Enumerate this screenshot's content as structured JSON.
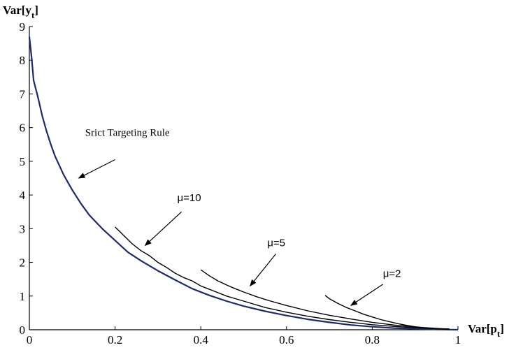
{
  "chart_data": {
    "type": "line",
    "title": "",
    "xlabel": {
      "main": "Var[p",
      "sub": "t",
      "close": "]"
    },
    "ylabel": {
      "main": "Var[y",
      "sub": "t",
      "close": "]"
    },
    "xlim": [
      0,
      1
    ],
    "ylim": [
      0,
      9
    ],
    "grid": false,
    "xticks": [
      "0",
      "0.2",
      "0.4",
      "0.6",
      "0.8",
      "1"
    ],
    "yticks": [
      "0",
      "1",
      "2",
      "3",
      "4",
      "5",
      "6",
      "7",
      "8",
      "9"
    ],
    "series": [
      {
        "name": "Srict Targeting Rule",
        "color": "#1f2a6e",
        "x": [
          0.0,
          0.005,
          0.01,
          0.02,
          0.03,
          0.04,
          0.05,
          0.06,
          0.08,
          0.1,
          0.12,
          0.14,
          0.17,
          0.2,
          0.23,
          0.26,
          0.3,
          0.34,
          0.38,
          0.42,
          0.46,
          0.5,
          0.55,
          0.6,
          0.65,
          0.7,
          0.75,
          0.8,
          0.85,
          0.9,
          0.95,
          1.0
        ],
        "y": [
          8.7,
          8.1,
          7.4,
          6.9,
          6.35,
          5.9,
          5.5,
          5.15,
          4.6,
          4.15,
          3.75,
          3.4,
          3.0,
          2.65,
          2.3,
          2.05,
          1.75,
          1.48,
          1.22,
          1.02,
          0.85,
          0.7,
          0.55,
          0.42,
          0.31,
          0.22,
          0.14,
          0.09,
          0.05,
          0.03,
          0.01,
          0.0
        ]
      },
      {
        "name": "μ=10",
        "color": "#000000",
        "x": [
          0.2,
          0.22,
          0.24,
          0.26,
          0.28,
          0.3,
          0.32,
          0.34,
          0.36,
          0.38,
          0.4,
          0.43,
          0.46,
          0.5,
          0.55,
          0.6,
          0.65,
          0.7,
          0.75,
          0.8,
          0.85,
          0.9,
          0.95,
          0.98
        ],
        "y": [
          3.05,
          2.8,
          2.55,
          2.35,
          2.2,
          2.0,
          1.85,
          1.68,
          1.55,
          1.45,
          1.3,
          1.15,
          1.0,
          0.85,
          0.66,
          0.52,
          0.4,
          0.3,
          0.22,
          0.15,
          0.1,
          0.06,
          0.03,
          0.02
        ]
      },
      {
        "name": "μ=5",
        "color": "#000000",
        "x": [
          0.4,
          0.42,
          0.44,
          0.46,
          0.48,
          0.5,
          0.53,
          0.56,
          0.6,
          0.65,
          0.7,
          0.75,
          0.8,
          0.85,
          0.9,
          0.95,
          0.98
        ],
        "y": [
          1.78,
          1.6,
          1.45,
          1.33,
          1.22,
          1.12,
          0.98,
          0.86,
          0.72,
          0.56,
          0.43,
          0.32,
          0.22,
          0.14,
          0.08,
          0.04,
          0.02
        ]
      },
      {
        "name": "μ=2",
        "color": "#000000",
        "x": [
          0.69,
          0.7,
          0.72,
          0.74,
          0.76,
          0.78,
          0.8,
          0.82,
          0.84,
          0.86,
          0.88,
          0.9,
          0.92,
          0.94,
          0.96,
          0.98
        ],
        "y": [
          1.02,
          0.92,
          0.78,
          0.66,
          0.56,
          0.46,
          0.38,
          0.3,
          0.24,
          0.18,
          0.13,
          0.09,
          0.06,
          0.04,
          0.02,
          0.01
        ]
      }
    ],
    "annotations": [
      {
        "text": "Srict Targeting Rule",
        "style": "serif",
        "text_x": 0.13,
        "text_y": 5.75,
        "arrow_from": [
          0.2,
          5.05
        ],
        "arrow_to": [
          0.115,
          4.5
        ]
      },
      {
        "text": "μ=10",
        "style": "sans",
        "text_x": 0.345,
        "text_y": 3.82,
        "arrow_from": [
          0.355,
          3.5
        ],
        "arrow_to": [
          0.27,
          2.5
        ]
      },
      {
        "text": "μ=5",
        "style": "sans",
        "text_x": 0.555,
        "text_y": 2.48,
        "arrow_from": [
          0.575,
          2.25
        ],
        "arrow_to": [
          0.515,
          1.3
        ]
      },
      {
        "text": "μ=2",
        "style": "sans",
        "text_x": 0.825,
        "text_y": 1.57,
        "arrow_from": [
          0.825,
          1.35
        ],
        "arrow_to": [
          0.75,
          0.72
        ]
      }
    ]
  }
}
